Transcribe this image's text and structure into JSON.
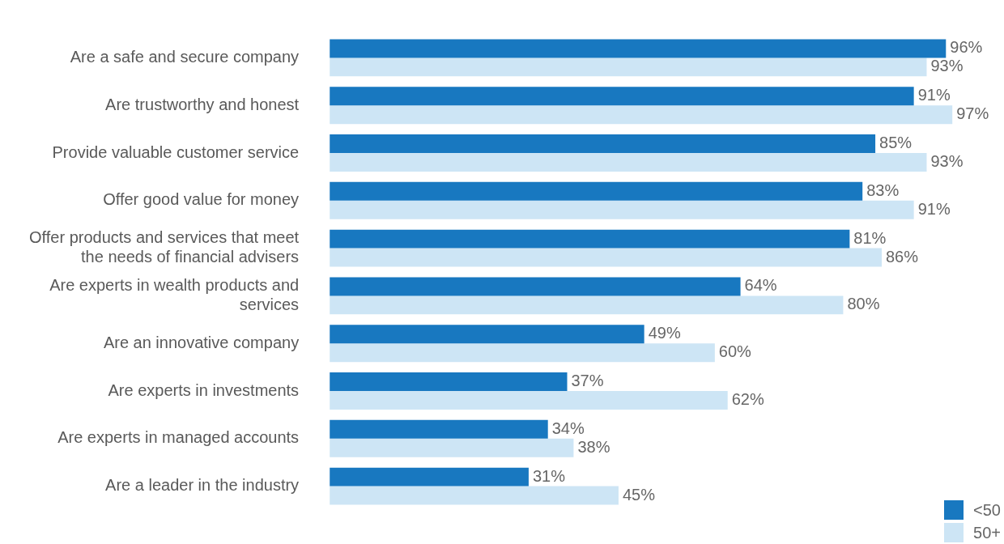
{
  "chart_data": {
    "type": "bar",
    "orientation": "horizontal",
    "legend": "bottom right",
    "tick_labels": "y",
    "categories": [
      "Are a safe and secure company",
      "Are trustworthy and honest",
      "Provide valuable customer service",
      "Offer good value for money",
      "Offer products and services that meet the needs of financial advisers",
      "Are experts in wealth products and services",
      "Are an innovative company",
      "Are experts in investments",
      "Are experts in managed accounts",
      "Are a leader in the industry"
    ],
    "series": [
      {
        "name": "<50",
        "color": "#1878c0",
        "values": [
          96,
          91,
          85,
          83,
          81,
          64,
          49,
          37,
          34,
          31
        ],
        "value_labels": [
          "96%",
          "91%",
          "85%",
          "83%",
          "81%",
          "64%",
          "49%",
          "37%",
          "34%",
          "31%"
        ]
      },
      {
        "name": "50+",
        "color": "#cde5f5",
        "values": [
          93,
          97,
          93,
          91,
          86,
          80,
          60,
          62,
          38,
          45
        ],
        "value_labels": [
          "93%",
          "97%",
          "93%",
          "91%",
          "86%",
          "80%",
          "60%",
          "62%",
          "38%",
          "45%"
        ]
      }
    ]
  }
}
